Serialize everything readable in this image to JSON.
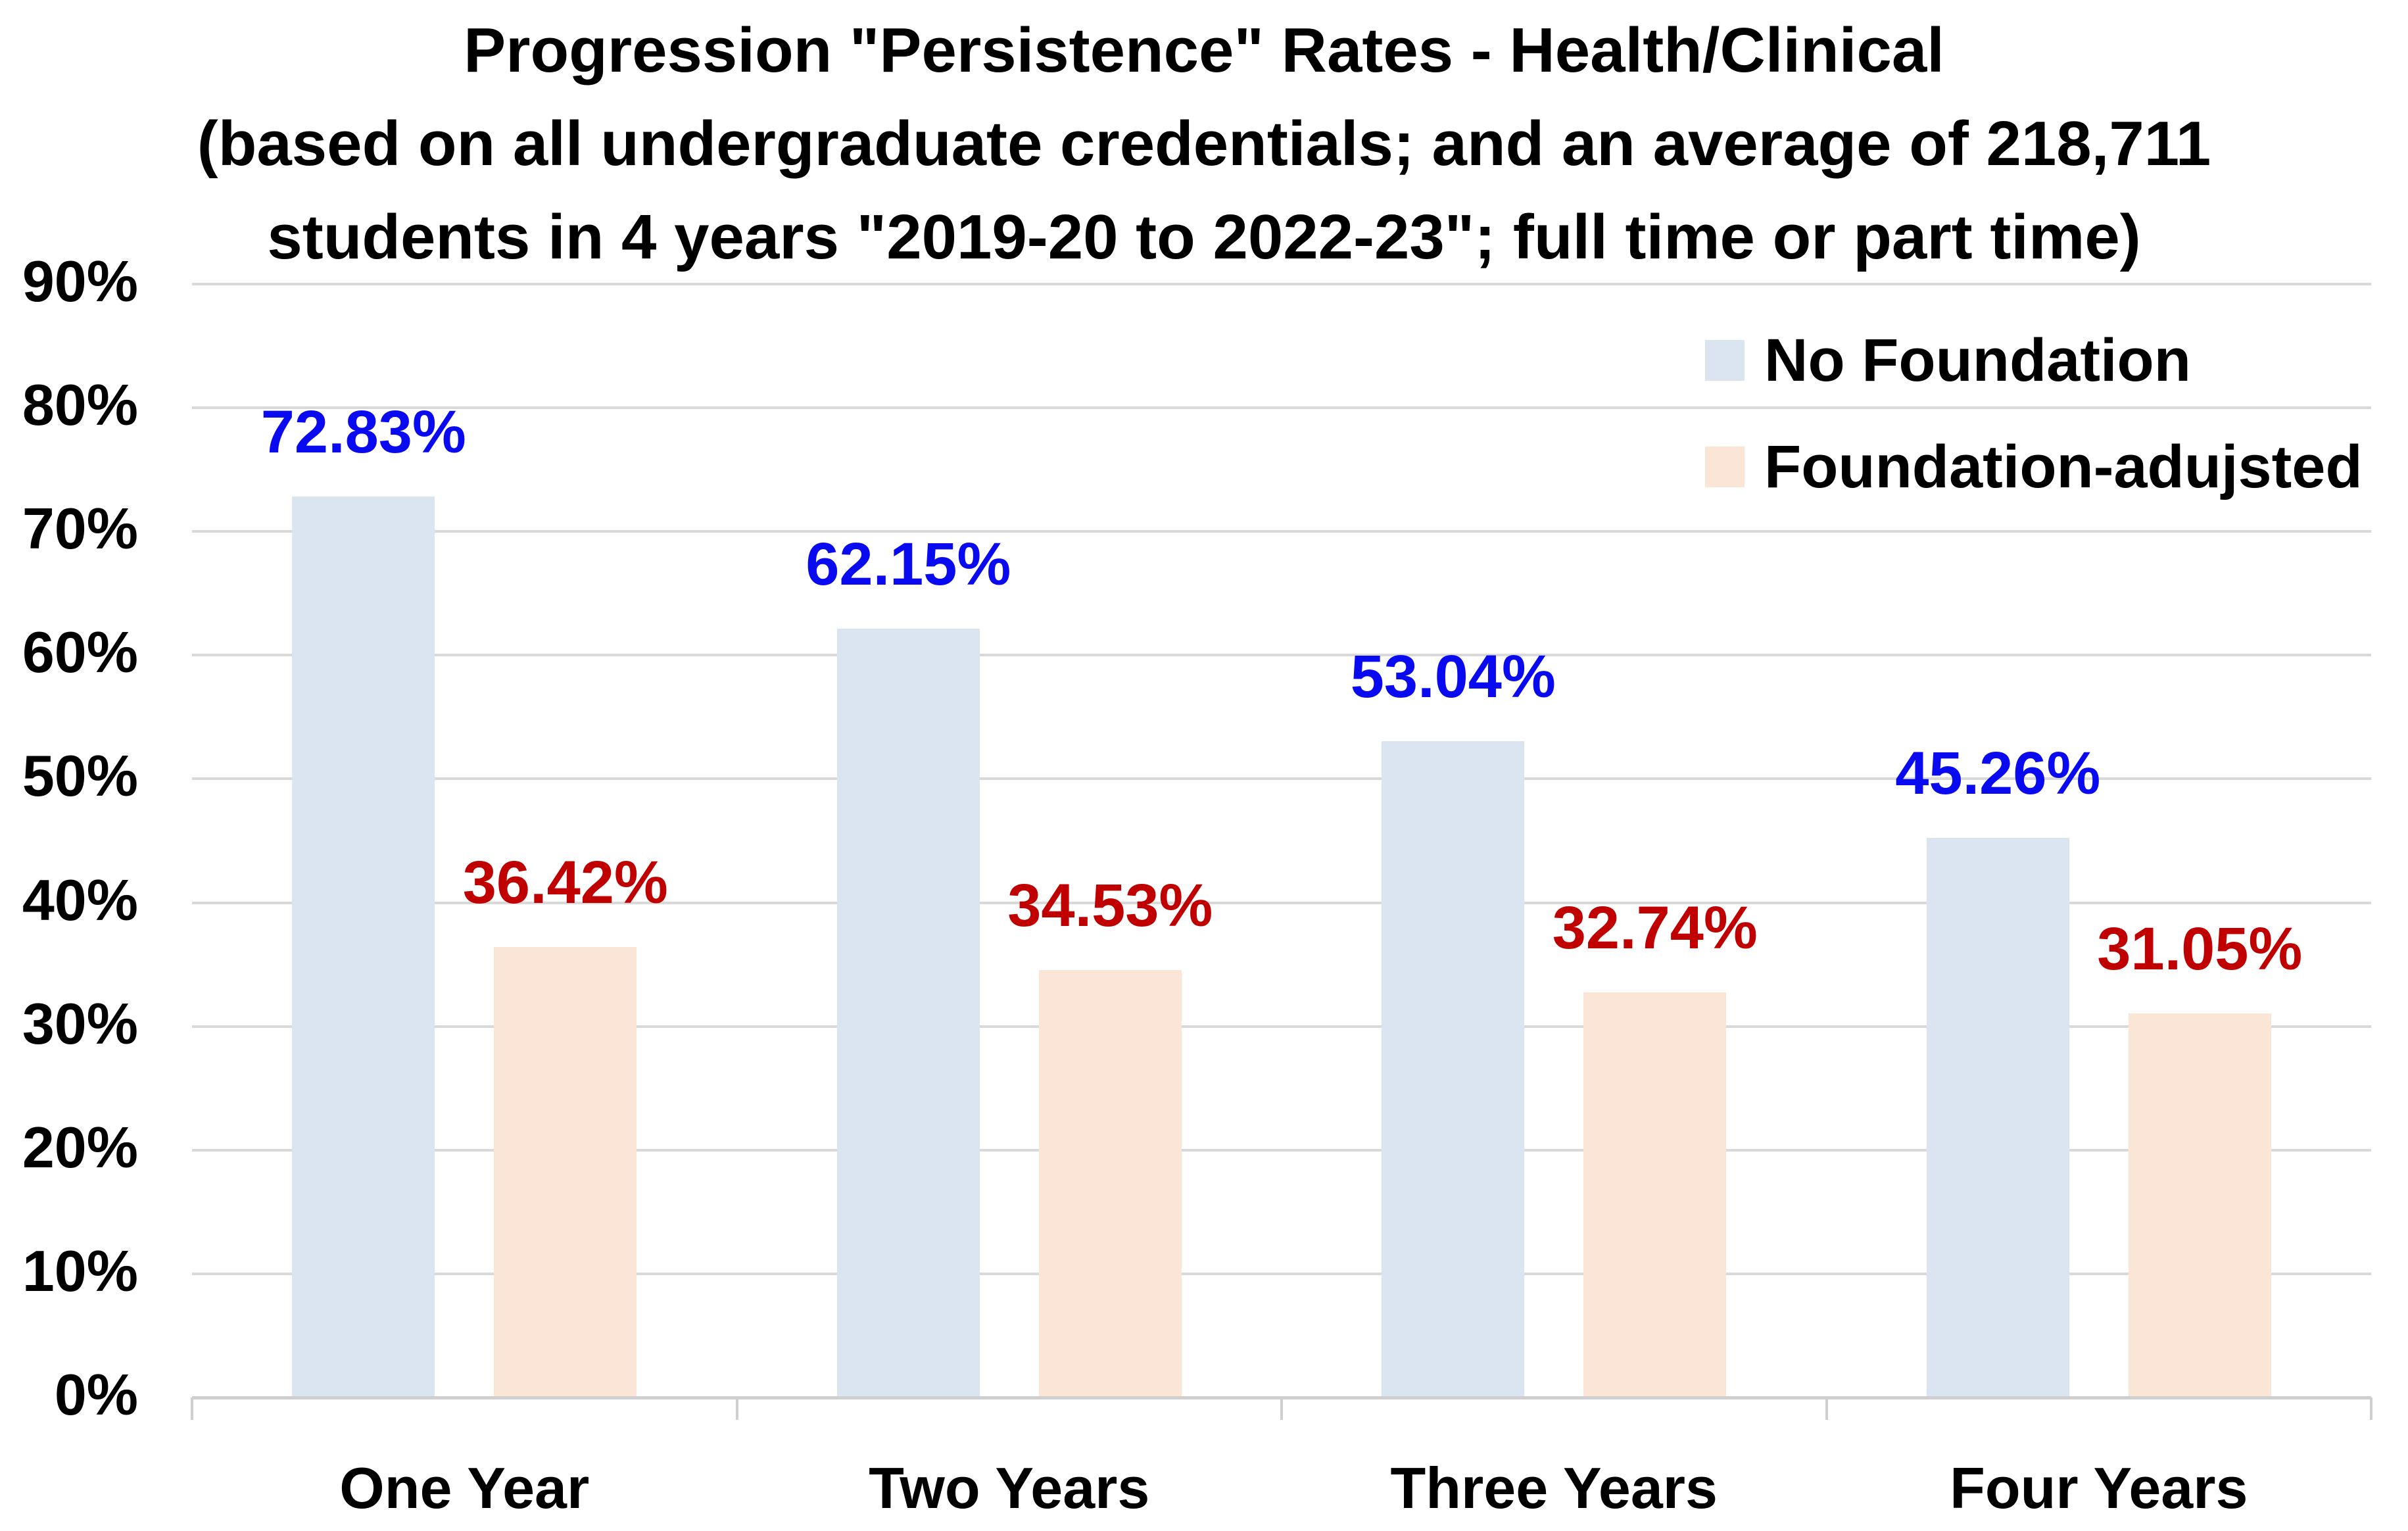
{
  "title": {
    "lines": [
      "Progression \"Persistence\" Rates - Health/Clinical",
      "(based on all undergraduate credentials; and an average of 218,711",
      "students in 4 years \"2019-20 to 2022-23\"; full time or part time)"
    ]
  },
  "chart_data": {
    "type": "bar",
    "categories": [
      "One Year",
      "Two Years",
      "Three Years",
      "Four Years"
    ],
    "series": [
      {
        "name": "No Foundation",
        "values": [
          72.83,
          62.15,
          53.04,
          45.26
        ],
        "bar_color": "#dbe5f1",
        "label_color": "#0a0af0"
      },
      {
        "name": "Foundation-adujsted",
        "values": [
          36.42,
          34.53,
          32.74,
          31.05
        ],
        "bar_color": "#fbe5d6",
        "label_color": "#c00000"
      }
    ],
    "value_labels": [
      [
        "72.83%",
        "62.15%",
        "53.04%",
        "45.26%"
      ],
      [
        "36.42%",
        "34.53%",
        "32.74%",
        "31.05%"
      ]
    ],
    "title": "Progression \"Persistence\" Rates - Health/Clinical (based on all undergraduate credentials; and an average of 218,711 students in 4 years \"2019-20 to 2022-23\"; full time or part time)",
    "xlabel": "",
    "ylabel": "",
    "ylim": [
      0,
      90
    ],
    "ytick_step": 10,
    "y_tick_labels": [
      "0%",
      "10%",
      "20%",
      "30%",
      "40%",
      "50%",
      "60%",
      "70%",
      "80%",
      "90%"
    ],
    "grid": true,
    "legend_position": "top-right",
    "gridline_color": "#d9d9d9",
    "axis_line_color": "#cfcfcf",
    "text_color": "#000000"
  }
}
